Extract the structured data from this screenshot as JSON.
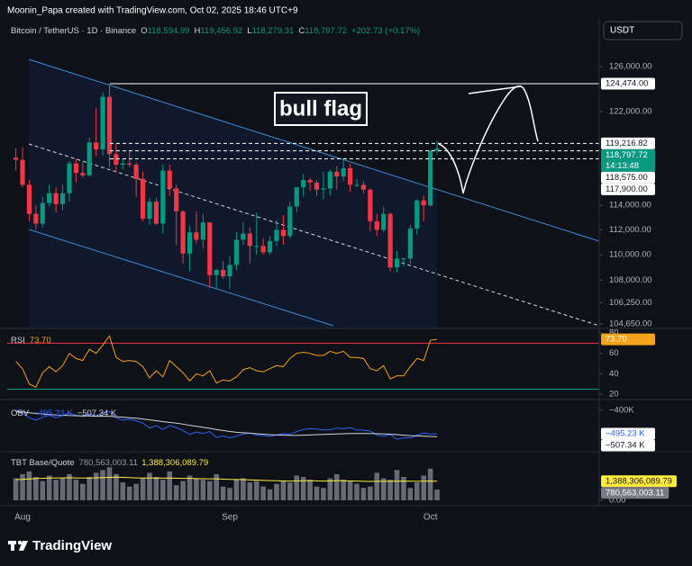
{
  "header": {
    "attribution": "Moonin_Papa created with TradingView.com, Oct 02, 2025 18:46 UTC+9",
    "logo": "TradingView"
  },
  "chart_data": [
    {
      "type": "candlestick",
      "symbol": "Bitcoin / TetherUS · 1D · Binance",
      "currency": "USDT",
      "ohlc_legend": [
        {
          "label": "O",
          "value": "118,594.99"
        },
        {
          "label": "H",
          "value": "119,456.92"
        },
        {
          "label": "L",
          "value": "118,279.31"
        },
        {
          "label": "C",
          "value": "118,797.72"
        }
      ],
      "change": "+202.73 (+0.17%)",
      "annotation": "bull flag",
      "categories": [
        null,
        "Aug",
        null,
        null,
        null,
        null,
        null,
        null,
        null,
        null,
        null,
        null,
        null,
        null,
        null,
        null,
        null,
        null,
        null,
        null,
        null,
        null,
        null,
        null,
        null,
        null,
        null,
        null,
        null,
        null,
        null,
        null,
        "Sep",
        null,
        null,
        null,
        null,
        null,
        null,
        null,
        null,
        null,
        null,
        null,
        null,
        null,
        null,
        null,
        null,
        null,
        null,
        null,
        null,
        null,
        null,
        null,
        null,
        null,
        null,
        null,
        null,
        null,
        "Oct",
        null
      ],
      "open": [
        118000,
        117800,
        115700,
        113300,
        112500,
        114200,
        115000,
        114100,
        115000,
        117500,
        116700,
        116500,
        119300,
        118700,
        123300,
        118300,
        117400,
        117500,
        117400,
        116200,
        112900,
        114300,
        112500,
        116900,
        115400,
        113500,
        110100,
        111800,
        111200,
        112600,
        108400,
        108800,
        108300,
        109200,
        111200,
        111700,
        110700,
        110700,
        110200,
        111100,
        112000,
        111500,
        113900,
        115500,
        116100,
        115900,
        115300,
        115400,
        116800,
        116400,
        117100,
        115700,
        115700,
        115300,
        112700,
        112000,
        113300,
        109000,
        109700,
        109700,
        112100,
        114400,
        114000,
        118594.99
      ],
      "high": [
        118800,
        118900,
        116100,
        114000,
        114700,
        115700,
        115500,
        115700,
        117700,
        117900,
        117600,
        119700,
        122300,
        123700,
        124474,
        119200,
        117900,
        118600,
        117600,
        116800,
        114600,
        114600,
        117400,
        117400,
        115700,
        113600,
        112300,
        113500,
        113300,
        112600,
        108900,
        109500,
        109900,
        111800,
        112600,
        112200,
        113400,
        111300,
        111500,
        112800,
        113200,
        114300,
        115500,
        116600,
        116300,
        116100,
        116800,
        117000,
        117300,
        117900,
        117500,
        116200,
        116000,
        115400,
        113300,
        113900,
        113400,
        110300,
        109800,
        112400,
        114500,
        114800,
        118650,
        119456.92
      ],
      "low": [
        116900,
        115500,
        112700,
        112000,
        112200,
        113900,
        113400,
        113600,
        114300,
        115900,
        116300,
        116400,
        118100,
        118200,
        117200,
        116800,
        117000,
        117200,
        114700,
        112700,
        112400,
        112400,
        111700,
        114800,
        110800,
        109300,
        108700,
        110900,
        110500,
        107400,
        107300,
        108100,
        107300,
        108800,
        110800,
        109300,
        110000,
        110000,
        110000,
        110700,
        110800,
        111300,
        113400,
        114700,
        115200,
        114800,
        114500,
        114800,
        115300,
        116000,
        115100,
        115500,
        115000,
        111900,
        111500,
        111800,
        108700,
        108600,
        109100,
        109300,
        111600,
        112700,
        113900,
        118279.31
      ],
      "close": [
        117800,
        115700,
        113300,
        112500,
        114200,
        115000,
        114100,
        115000,
        117500,
        116700,
        116500,
        119300,
        118700,
        123300,
        118300,
        117400,
        117500,
        117400,
        116200,
        112900,
        114300,
        112500,
        116900,
        115400,
        113500,
        110100,
        111800,
        111200,
        112600,
        108400,
        108800,
        108300,
        109200,
        111200,
        111700,
        110700,
        110700,
        110200,
        111100,
        112000,
        111500,
        113900,
        115500,
        116100,
        115900,
        115300,
        115400,
        116800,
        116400,
        117100,
        115700,
        115700,
        115300,
        112700,
        112000,
        113300,
        109000,
        109700,
        109700,
        112100,
        114400,
        114000,
        118594.99,
        118797.72
      ],
      "up_color": "#089981",
      "down_color": "#f23645",
      "log_scale": true,
      "ylim": [
        104300,
        128000
      ],
      "yticks": [
        {
          "value": 126000,
          "label": "126,000.00"
        },
        {
          "value": 122000,
          "label": "122,000.00"
        },
        {
          "value": 114000,
          "label": "114,000.00"
        },
        {
          "value": 112000,
          "label": "112,000.00"
        },
        {
          "value": 110000,
          "label": "110,000.00"
        },
        {
          "value": 108000,
          "label": "108,000.00"
        },
        {
          "value": 106250,
          "label": "106,250.00"
        },
        {
          "value": 104650,
          "label": "104,650.00"
        }
      ],
      "levels": [
        {
          "value": 124474,
          "label": "124,474.00",
          "style": "solid"
        },
        {
          "value": 119216.82,
          "label": "119,216.82",
          "style": "dashed"
        },
        {
          "value": 118575,
          "label": "118,575.00",
          "style": "dashed"
        },
        {
          "value": 117900,
          "label": "117,900.00",
          "style": "dashed"
        }
      ],
      "last_price_label": "118,797.72",
      "countdown": "14:13:48"
    },
    {
      "type": "line",
      "title": "RSI",
      "color": "#f7a21b",
      "values": [
        52,
        45,
        30,
        27,
        41,
        47,
        42,
        48,
        60,
        55,
        53,
        64,
        60,
        68,
        77,
        56,
        52,
        53,
        52,
        47,
        36,
        43,
        37,
        53,
        47,
        41,
        33,
        40,
        38,
        43,
        31,
        34,
        33,
        37,
        44,
        46,
        43,
        42,
        45,
        48,
        47,
        55,
        60,
        61,
        60,
        58,
        58,
        62,
        60,
        62,
        56,
        56,
        55,
        45,
        43,
        48,
        35,
        38,
        38,
        47,
        55,
        53,
        72.8,
        73.7
      ],
      "last_label": "73.70",
      "ylim": [
        15.7,
        83.5
      ],
      "yticks": [
        80,
        60,
        40,
        20
      ],
      "levels": [
        {
          "value": 70,
          "color": "#f23645"
        },
        {
          "value": 25,
          "color": "#089981"
        }
      ]
    },
    {
      "type": "line",
      "title": "OBV",
      "series": [
        {
          "color": "#2962ff",
          "last_label": "−495.23 K",
          "values": [
            -398000,
            -412000,
            -430000,
            -440000,
            -428000,
            -420000,
            -430000,
            -422000,
            -410000,
            -420000,
            -425000,
            -415000,
            -422000,
            -410000,
            -405000,
            -430000,
            -440000,
            -436000,
            -442000,
            -452000,
            -472000,
            -462000,
            -478000,
            -462000,
            -470000,
            -482000,
            -498000,
            -488000,
            -494000,
            -486000,
            -510000,
            -504000,
            -512000,
            -505000,
            -496000,
            -492000,
            -500000,
            -502000,
            -506000,
            -500000,
            -494000,
            -498000,
            -486000,
            -478000,
            -474000,
            -476000,
            -480000,
            -479000,
            -472000,
            -475000,
            -470000,
            -480000,
            -481000,
            -484000,
            -500000,
            -506000,
            -498000,
            -518000,
            -512000,
            -512000,
            -502000,
            -492000,
            -496000,
            -495230
          ]
        },
        {
          "color": "#d1d4dc",
          "last_label": "−507.34 K",
          "values": [
            -405000,
            -407000,
            -410000,
            -413000,
            -415000,
            -417000,
            -419000,
            -420000,
            -421000,
            -422000,
            -423000,
            -423000,
            -424000,
            -424000,
            -424000,
            -426000,
            -428000,
            -430000,
            -432000,
            -435000,
            -439000,
            -442000,
            -446000,
            -449000,
            -452000,
            -456000,
            -461000,
            -465000,
            -469000,
            -473000,
            -478000,
            -482000,
            -486000,
            -489000,
            -491000,
            -493000,
            -495000,
            -497000,
            -499000,
            -500000,
            -501000,
            -502000,
            -502000,
            -501000,
            -500000,
            -499000,
            -498000,
            -497000,
            -496000,
            -495000,
            -494000,
            -494000,
            -494000,
            -494000,
            -495000,
            -496000,
            -497000,
            -499000,
            -501000,
            -503000,
            -504000,
            -505000,
            -506000,
            -507340
          ]
        }
      ],
      "ylim": [
        -561000,
        -367000
      ],
      "yticks": [
        {
          "value": -400000,
          "label": "−400K"
        }
      ]
    },
    {
      "type": "volume",
      "title": "TBT Base/Quote",
      "color": "#787b86",
      "values": [
        1600000000.0,
        1900000000.0,
        2100000000.0,
        1700000000.0,
        1400000000.0,
        1800000000.0,
        1500000000.0,
        1600000000.0,
        1900000000.0,
        1500000000.0,
        1200000000.0,
        1700000000.0,
        2000000000.0,
        2200000000.0,
        2400000000.0,
        1900000000.0,
        1300000000.0,
        1000000000.0,
        1200000000.0,
        1600000000.0,
        2000000000.0,
        1700000000.0,
        1500000000.0,
        2100000000.0,
        1100000000.0,
        1400000000.0,
        1800000000.0,
        1600000000.0,
        1500000000.0,
        1400000000.0,
        1900000000.0,
        1000000000.0,
        900000000.0,
        1500000000.0,
        1600000000.0,
        1300000000.0,
        1400000000.0,
        1000000000.0,
        800000000.0,
        1200000000.0,
        1400000000.0,
        1300000000.0,
        1800000000.0,
        1700000000.0,
        1500000000.0,
        1000000000.0,
        900000000.0,
        1600000000.0,
        1900000000.0,
        1500000000.0,
        1400000000.0,
        1200000000.0,
        900000000.0,
        1000000000.0,
        2000000000.0,
        1600000000.0,
        1500000000.0,
        2200000000.0,
        1700000000.0,
        900000000.0,
        1300000000.0,
        1800000000.0,
        2300000000.0,
        780563003.11
      ],
      "last_label": "780,563,003.11",
      "ma": {
        "color": "#ffeb3b",
        "last_label": "1,388,306,089.79",
        "values": [
          1500000000.0,
          1520000000.0,
          1550000000.0,
          1580000000.0,
          1600000000.0,
          1620000000.0,
          1630000000.0,
          1630000000.0,
          1640000000.0,
          1630000000.0,
          1620000000.0,
          1620000000.0,
          1630000000.0,
          1650000000.0,
          1670000000.0,
          1680000000.0,
          1670000000.0,
          1650000000.0,
          1630000000.0,
          1620000000.0,
          1620000000.0,
          1620000000.0,
          1610000000.0,
          1620000000.0,
          1600000000.0,
          1590000000.0,
          1590000000.0,
          1580000000.0,
          1570000000.0,
          1560000000.0,
          1560000000.0,
          1540000000.0,
          1520000000.0,
          1510000000.0,
          1500000000.0,
          1480000000.0,
          1470000000.0,
          1450000000.0,
          1430000000.0,
          1420000000.0,
          1410000000.0,
          1400000000.0,
          1410000000.0,
          1420000000.0,
          1420000000.0,
          1410000000.0,
          1400000000.0,
          1410000000.0,
          1420000000.0,
          1420000000.0,
          1410000000.0,
          1400000000.0,
          1380000000.0,
          1370000000.0,
          1380000000.0,
          1380000000.0,
          1380000000.0,
          1390000000.0,
          1400000000.0,
          1390000000.0,
          1380000000.0,
          1390000000.0,
          1400000000.0,
          1388306089.79
        ]
      },
      "ylim": [
        0,
        3400000000.0
      ],
      "yticks": [
        {
          "value": 0,
          "label": "0.00"
        }
      ]
    }
  ]
}
